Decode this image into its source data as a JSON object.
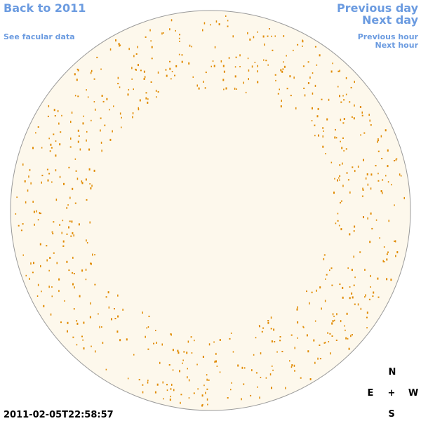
{
  "links": {
    "back": "Back to 2011",
    "facular_data": "See facular data",
    "previous_day": "Previous day",
    "next_day": "Next day",
    "previous_hour": "Previous hour",
    "next_hour": "Next hour"
  },
  "timestamp": "2011-02-05T22:58:57",
  "compass": {
    "north": "N",
    "east": "E",
    "center": "+",
    "west": "W",
    "south": "S"
  }
}
